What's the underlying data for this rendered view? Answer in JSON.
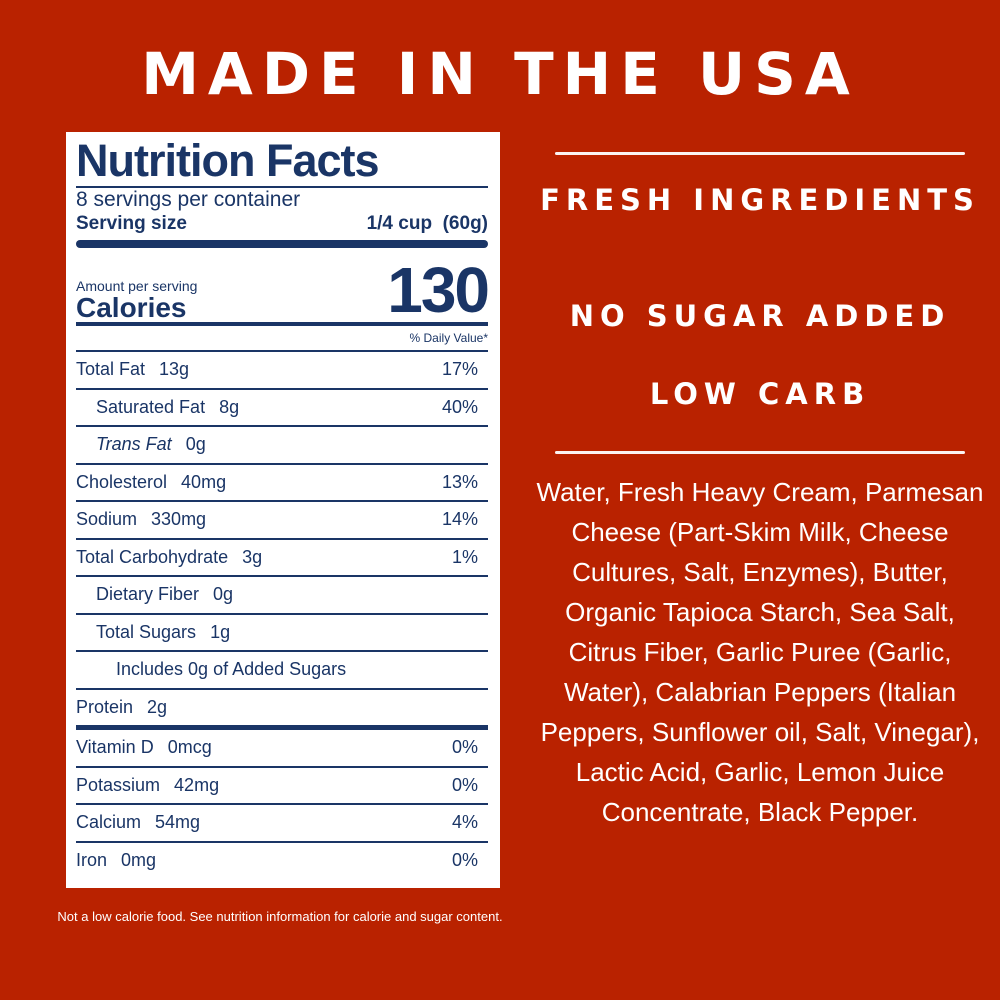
{
  "headline": "MADE IN THE USA",
  "label": {
    "title": "Nutrition Facts",
    "servings": "8 servings per container",
    "serving_size_label": "Serving size",
    "serving_size_value": "1/4 cup  (60g)",
    "amount_per_serving": "Amount per serving",
    "calories_label": "Calories",
    "calories_value": "130",
    "daily_value_header": "% Daily Value*",
    "nutrients": [
      {
        "name": "Total Fat",
        "amount": "13g",
        "dv": "17%",
        "indent": 0
      },
      {
        "name": "Saturated Fat",
        "amount": "8g",
        "dv": "40%",
        "indent": 1
      },
      {
        "name": "Trans Fat",
        "amount": "0g",
        "dv": "",
        "indent": 1
      },
      {
        "name": "Cholesterol",
        "amount": "40mg",
        "dv": "13%",
        "indent": 0
      },
      {
        "name": "Sodium",
        "amount": "330mg",
        "dv": "14%",
        "indent": 0
      },
      {
        "name": "Total Carbohydrate",
        "amount": "3g",
        "dv": "1%",
        "indent": 0
      },
      {
        "name": "Dietary Fiber",
        "amount": "0g",
        "dv": "",
        "indent": 1
      },
      {
        "name": "Total Sugars",
        "amount": "1g",
        "dv": "",
        "indent": 1
      },
      {
        "name": "Includes 0g of Added Sugars",
        "amount": "",
        "dv": "",
        "indent": 2
      },
      {
        "name": "Protein",
        "amount": "2g",
        "dv": "",
        "indent": 0
      }
    ],
    "vitamins": [
      {
        "name": "Vitamin D",
        "amount": "0mcg",
        "dv": "0%"
      },
      {
        "name": "Potassium",
        "amount": "42mg",
        "dv": "0%"
      },
      {
        "name": "Calcium",
        "amount": "54mg",
        "dv": "4%"
      },
      {
        "name": "Iron",
        "amount": "0mg",
        "dv": "0%"
      }
    ]
  },
  "footnote": "Not a low calorie food. See nutrition information for calorie and sugar content.",
  "claims": [
    "FRESH INGREDIENTS",
    "NO SUGAR ADDED",
    "LOW CARB"
  ],
  "ingredients": "Water, Fresh Heavy Cream, Parmesan Cheese (Part-Skim Milk, Cheese Cultures, Salt, Enzymes), Butter, Organic Tapioca Starch, Sea Salt, Citrus Fiber, Garlic Puree (Garlic, Water), Calabrian Peppers (Italian Peppers, Sunflower oil, Salt, Vinegar), Lactic Acid, Garlic, Lemon Juice Concentrate, Black Pepper.",
  "colors": {
    "background": "#b92200",
    "label_text": "#1a3566",
    "text": "#ffffff"
  }
}
